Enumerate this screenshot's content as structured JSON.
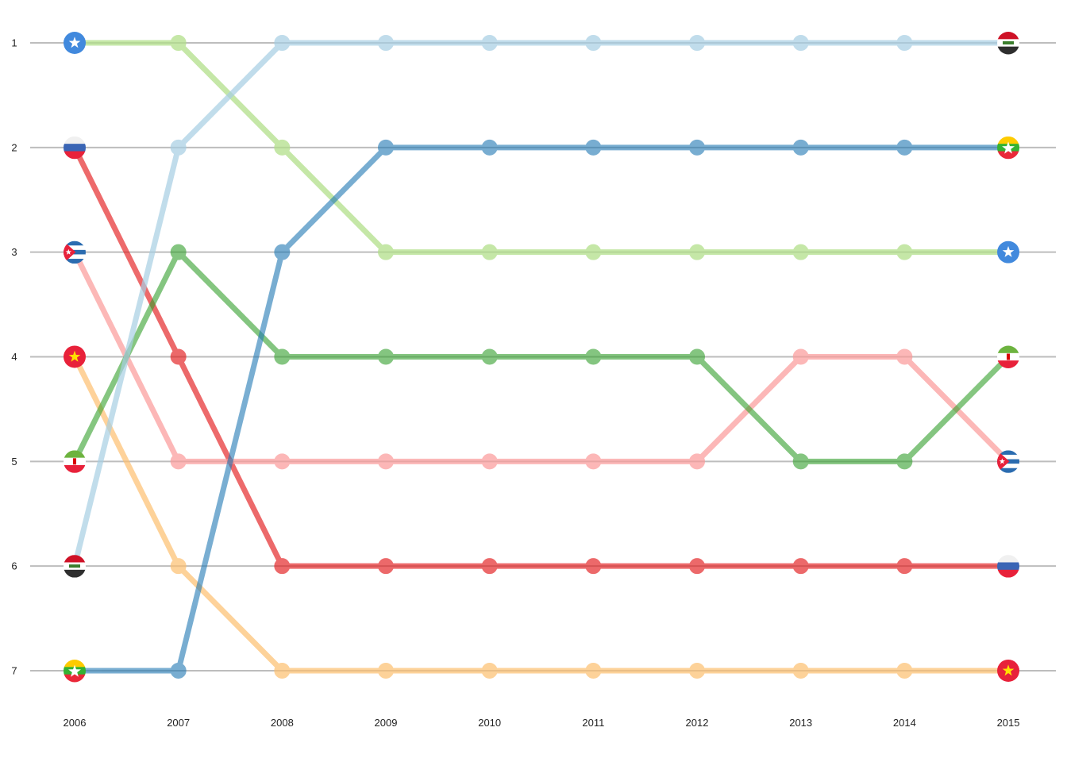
{
  "chart_data": {
    "type": "line",
    "subtype": "bump",
    "x": [
      2006,
      2007,
      2008,
      2009,
      2010,
      2011,
      2012,
      2013,
      2014,
      2015
    ],
    "x_tick_labels": [
      "2006",
      "2007",
      "2008",
      "2009",
      "2010",
      "2011",
      "2012",
      "2013",
      "2014",
      "2015"
    ],
    "y_tick_labels": [
      "1",
      "2",
      "3",
      "4",
      "5",
      "6",
      "7"
    ],
    "ylim": [
      1,
      7
    ],
    "y_inverted": true,
    "grid": "horizontal",
    "legend": "none",
    "series": [
      {
        "color": "#b2df8a",
        "opacity": 0.75,
        "start_flag": "somalia-flag-icon",
        "end_flag": "somalia-flag-icon",
        "values": [
          1,
          1,
          2,
          3,
          3,
          3,
          3,
          3,
          3,
          3
        ]
      },
      {
        "color": "#e31a1c",
        "opacity": 0.65,
        "start_flag": "russia-flag-icon",
        "end_flag": "russia-flag-icon",
        "values": [
          2,
          4,
          6,
          6,
          6,
          6,
          6,
          6,
          6,
          6
        ]
      },
      {
        "color": "#fb9a99",
        "opacity": 0.7,
        "start_flag": "cuba-flag-icon",
        "end_flag": "cuba-flag-icon",
        "values": [
          3,
          5,
          5,
          5,
          5,
          5,
          5,
          4,
          4,
          5
        ]
      },
      {
        "color": "#fdbf6f",
        "opacity": 0.7,
        "start_flag": "vietnam-flag-icon",
        "end_flag": "vietnam-flag-icon",
        "values": [
          4,
          6,
          7,
          7,
          7,
          7,
          7,
          7,
          7,
          7
        ]
      },
      {
        "color": "#33a02c",
        "opacity": 0.6,
        "start_flag": "iran-flag-icon",
        "end_flag": "iran-flag-icon",
        "values": [
          5,
          3,
          4,
          4,
          4,
          4,
          4,
          5,
          5,
          4
        ]
      },
      {
        "color": "#a6cee3",
        "opacity": 0.7,
        "start_flag": "iraq-flag-icon",
        "end_flag": "iraq-flag-icon",
        "values": [
          6,
          2,
          1,
          1,
          1,
          1,
          1,
          1,
          1,
          1
        ]
      },
      {
        "color": "#1f78b4",
        "opacity": 0.6,
        "start_flag": "myanmar-flag-icon",
        "end_flag": "myanmar-flag-icon",
        "values": [
          7,
          7,
          3,
          2,
          2,
          2,
          2,
          2,
          2,
          2
        ]
      }
    ]
  }
}
